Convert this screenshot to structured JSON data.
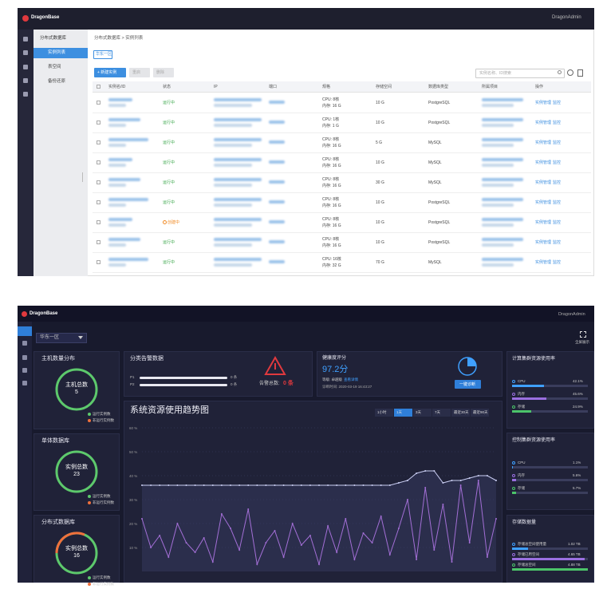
{
  "list_page": {
    "brand": "DragonBase",
    "user": "DragonAdmin",
    "nav_title": "分布式数据库",
    "nav_items": [
      "实例列表",
      "表空间",
      "备份还原"
    ],
    "breadcrumb": "分布式数据库 > 实例列表",
    "region": "华东一区",
    "buttons": [
      "+ 新建实例",
      "重启",
      "删除"
    ],
    "search_placeholder": "实例名称、ID搜索",
    "table": {
      "headers": [
        "实例名/ID",
        "状态",
        "IP",
        "端口",
        "规格",
        "存储空间",
        "数据库类型",
        "所属项目",
        "操作"
      ],
      "rows": [
        {
          "status": "运行中",
          "cpu": "CPU: 8核",
          "memory": "内存: 16 G",
          "storage": "10 G",
          "db": "PostgreSQL",
          "actions": [
            "实例管理",
            "监控"
          ]
        },
        {
          "status": "运行中",
          "cpu": "CPU: 1核",
          "memory": "内存: 1 G",
          "storage": "10 G",
          "db": "PostgreSQL",
          "actions": [
            "实例管理",
            "监控"
          ]
        },
        {
          "status": "运行中",
          "cpu": "CPU: 8核",
          "memory": "内存: 16 G",
          "storage": "5 G",
          "db": "MySQL",
          "actions": [
            "实例管理",
            "监控"
          ]
        },
        {
          "status": "运行中",
          "cpu": "CPU: 8核",
          "memory": "内存: 16 G",
          "storage": "10 G",
          "db": "MySQL",
          "actions": [
            "实例管理",
            "监控"
          ]
        },
        {
          "status": "运行中",
          "cpu": "CPU: 8核",
          "memory": "内存: 16 G",
          "storage": "30 G",
          "db": "MySQL",
          "actions": [
            "实例管理",
            "监控"
          ]
        },
        {
          "status": "运行中",
          "cpu": "CPU: 8核",
          "memory": "内存: 16 G",
          "storage": "10 G",
          "db": "PostgreSQL",
          "actions": [
            "实例管理",
            "监控"
          ]
        },
        {
          "status": "创建中",
          "cpu": "CPU: 8核",
          "memory": "内存: 16 G",
          "storage": "10 G",
          "db": "PostgreSQL",
          "actions": [
            "实例管理",
            "监控"
          ]
        },
        {
          "status": "运行中",
          "cpu": "CPU: 8核",
          "memory": "内存: 16 G",
          "storage": "10 G",
          "db": "PostgreSQL",
          "actions": [
            "实例管理",
            "监控"
          ]
        },
        {
          "status": "运行中",
          "cpu": "CPU: 16核",
          "memory": "内存: 32 G",
          "storage": "70 G",
          "db": "MySQL",
          "actions": [
            "实例管理",
            "监控"
          ]
        }
      ]
    }
  },
  "dashboard": {
    "brand": "DragonBase",
    "user": "DragonAdmin",
    "region": "华东一区",
    "fullscreen": "全屏展示",
    "summary_cards": [
      {
        "title": "主机数量分布",
        "label": "主机总数",
        "count": 5,
        "legend": [
          "运行实例数",
          "非运行实例数"
        ]
      },
      {
        "title": "单体数据库",
        "label": "实例总数",
        "count": 23,
        "legend": [
          "运行实例数",
          "非运行实例数"
        ]
      },
      {
        "title": "分布式数据库",
        "label": "实例总数",
        "count": 16,
        "legend": [
          "运行实例数",
          "非运行实例数"
        ]
      }
    ],
    "alerts": {
      "title": "分类告警数据",
      "rows": [
        {
          "name": "P1",
          "value": "0 条"
        },
        {
          "name": "P2",
          "value": "0 条"
        }
      ],
      "total": "告警总数:",
      "total_value": "0 条"
    },
    "health": {
      "title": "健康度评分",
      "score": "97.2分",
      "level": "等级: 卓越级",
      "link": "查看详情",
      "time": "诊断时间: 2020-03-19 16:43:27",
      "button": "一键诊断"
    },
    "trend": {
      "type": "line",
      "title": "系统资源使用趋势图",
      "ranges": [
        "1小时",
        "1天",
        "3天",
        "7天",
        "最近30天",
        "最近90天"
      ],
      "ylim": [
        0,
        60
      ],
      "yticks": [
        {
          "value": 60,
          "label": "60 %"
        },
        {
          "value": 50,
          "label": "50 %"
        },
        {
          "value": 40,
          "label": "40 %"
        },
        {
          "value": 30,
          "label": "30 %"
        },
        {
          "value": 20,
          "label": "20 %"
        },
        {
          "value": 10,
          "label": "10 %"
        }
      ],
      "series": [
        {
          "color": "#c9cdf2",
          "values": [
            36,
            36,
            36,
            36,
            36,
            36,
            36,
            36,
            36,
            36,
            36,
            36,
            36,
            36,
            36,
            36,
            36,
            36,
            36,
            36,
            36,
            36,
            36,
            36,
            36,
            36,
            36,
            36,
            36,
            37,
            38,
            41,
            42,
            42,
            37,
            38,
            38,
            39,
            40,
            40,
            38
          ]
        },
        {
          "color": "#a36fd6",
          "values": [
            22,
            10,
            15,
            6,
            20,
            12,
            8,
            14,
            4,
            24,
            18,
            9,
            26,
            3,
            12,
            17,
            6,
            20,
            11,
            15,
            3,
            19,
            8,
            22,
            5,
            16,
            12,
            23,
            7,
            18,
            30,
            5,
            35,
            9,
            28,
            4,
            36,
            12,
            38,
            6,
            22
          ]
        }
      ]
    },
    "clusters": [
      {
        "title": "计算集群资源使用率",
        "metrics": [
          {
            "name": "CPU",
            "value": 42.1,
            "label": "42.1%",
            "color": "#3fa0ff"
          },
          {
            "name": "内存",
            "value": 45.6,
            "label": "45.6%",
            "color": "#9a6fe0"
          },
          {
            "name": "存储",
            "value": 24.9,
            "label": "24.9%",
            "color": "#4cc46a"
          }
        ]
      },
      {
        "title": "控制集群资源使用率",
        "metrics": [
          {
            "name": "CPU",
            "value": 1.1,
            "label": "1.1%",
            "color": "#3fa0ff"
          },
          {
            "name": "内存",
            "value": 5.6,
            "label": "5.6%",
            "color": "#9a6fe0"
          },
          {
            "name": "存储",
            "value": 5.7,
            "label": "5.7%",
            "color": "#4cc46a"
          }
        ]
      }
    ],
    "storage": {
      "title": "存储数据量",
      "items": [
        {
          "name": "存储总空间使用量",
          "value": 1.02,
          "label": "1.02 TB",
          "color": "#3fa0ff"
        },
        {
          "name": "存储已用空间",
          "value": 4.65,
          "label": "4.65 TB",
          "color": "#9a6fe0"
        },
        {
          "name": "存储总空间",
          "value": 4.88,
          "label": "4.88 TB",
          "color": "#4cc46a"
        }
      ]
    }
  }
}
